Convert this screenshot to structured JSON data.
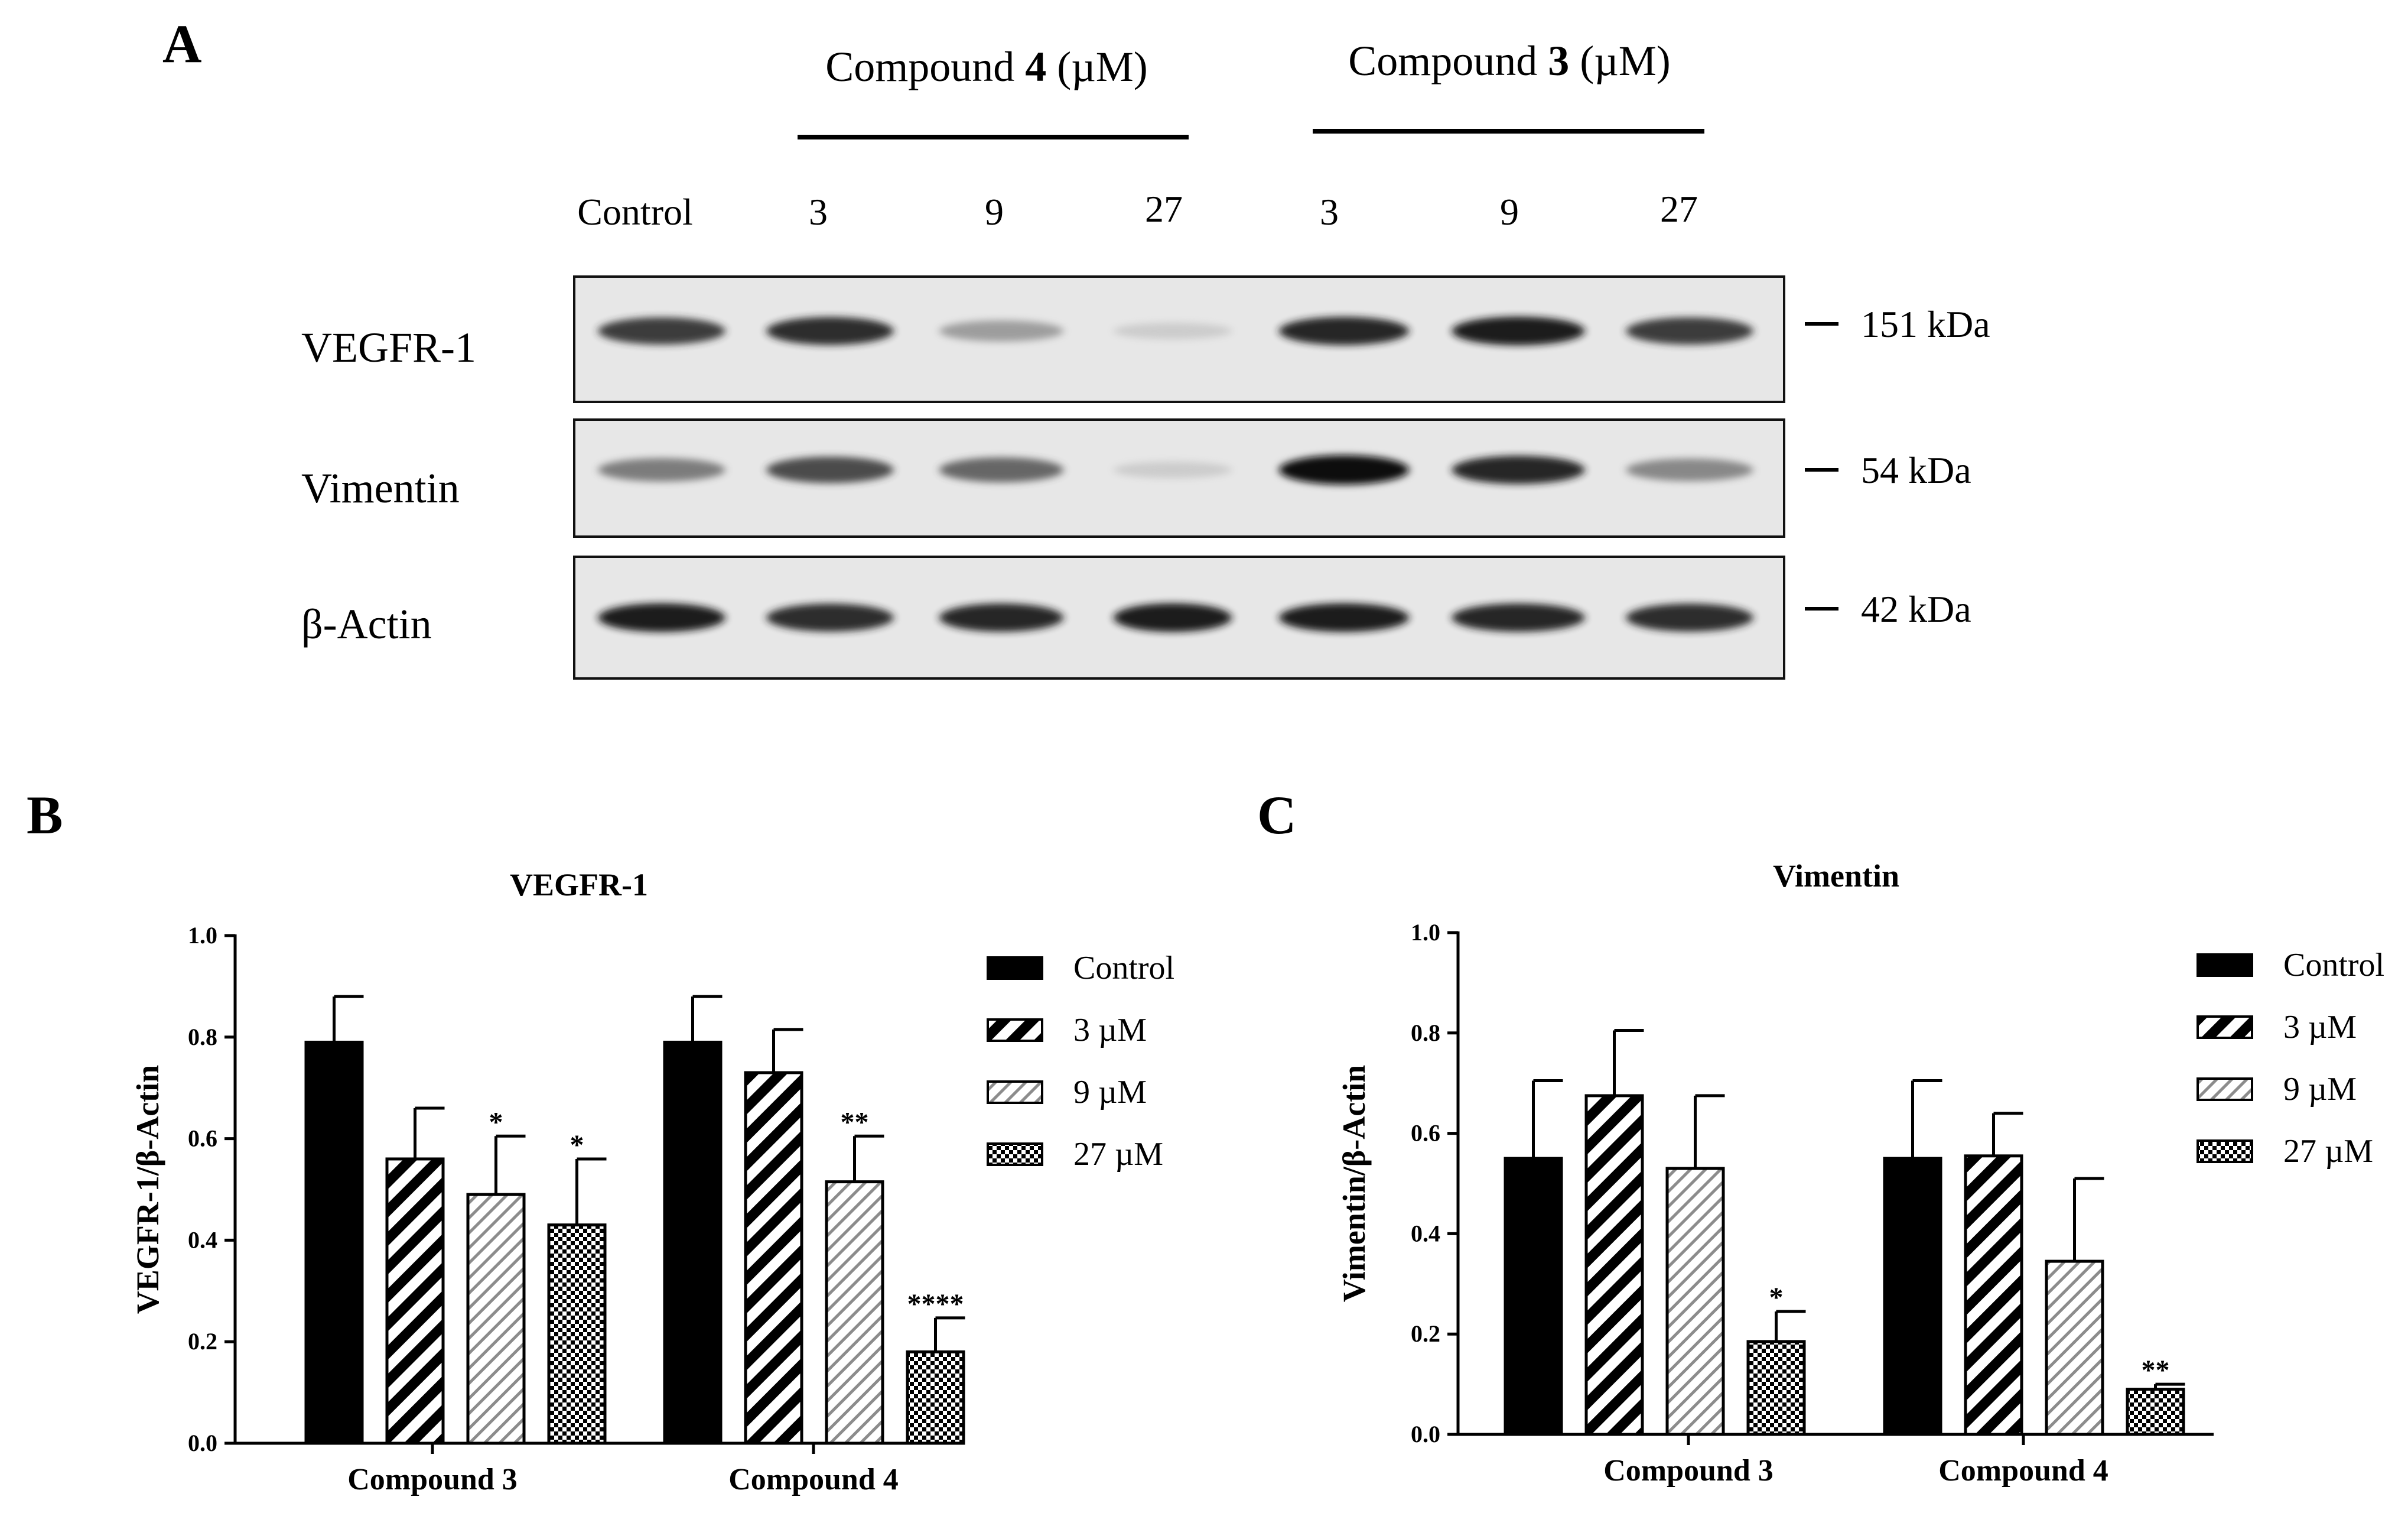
{
  "panel_a": {
    "letter": "A",
    "group4": {
      "prefix": "Compound ",
      "num": "4",
      "unit": " (µM)"
    },
    "group3": {
      "prefix": "Compound ",
      "num": "3",
      "unit": " (µM)"
    },
    "lane_labels": [
      "Control",
      "3",
      "9",
      "27",
      "3",
      "9",
      "27"
    ],
    "proteins": [
      "VEGFR-1",
      "Vimentin",
      "β-Actin"
    ],
    "markers": [
      "151 kDa",
      "54 kDa",
      "42 kDa"
    ],
    "band_intensity": [
      [
        0.85,
        0.9,
        0.45,
        0.15,
        0.92,
        0.95,
        0.85
      ],
      [
        0.6,
        0.8,
        0.7,
        0.15,
        1.0,
        0.92,
        0.55
      ],
      [
        0.95,
        0.9,
        0.92,
        0.95,
        0.95,
        0.92,
        0.9
      ]
    ]
  },
  "chart_data": [
    {
      "panel": "B",
      "type": "bar",
      "title": "VEGFR-1",
      "ylabel": "VEGFR-1/β-Actin",
      "categories": [
        "Compound 3",
        "Compound 4"
      ],
      "ylim": [
        0,
        1.0
      ],
      "yticks": [
        "0.0",
        "0.2",
        "0.4",
        "0.6",
        "0.8",
        "1.0"
      ],
      "legend_position": "right",
      "series": [
        {
          "name": "Control",
          "pattern": "solid",
          "values": [
            0.79,
            0.79
          ],
          "errors": [
            0.09,
            0.09
          ],
          "sig": [
            "",
            ""
          ]
        },
        {
          "name": "3 µM",
          "pattern": "hatch-bold",
          "values": [
            0.56,
            0.73
          ],
          "errors": [
            0.1,
            0.085
          ],
          "sig": [
            "",
            ""
          ]
        },
        {
          "name": "9 µM",
          "pattern": "hatch-light",
          "values": [
            0.49,
            0.515
          ],
          "errors": [
            0.115,
            0.09
          ],
          "sig": [
            "*",
            "**"
          ]
        },
        {
          "name": "27 µM",
          "pattern": "checker",
          "values": [
            0.43,
            0.18
          ],
          "errors": [
            0.13,
            0.067
          ],
          "sig": [
            "*",
            "****"
          ]
        }
      ]
    },
    {
      "panel": "C",
      "type": "bar",
      "title": "Vimentin",
      "ylabel": "Vimentin/β-Actin",
      "categories": [
        "Compound 3",
        "Compound 4"
      ],
      "ylim": [
        0,
        1.0
      ],
      "yticks": [
        "0.0",
        "0.2",
        "0.4",
        "0.6",
        "0.8",
        "1.0"
      ],
      "legend_position": "right",
      "series": [
        {
          "name": "Control",
          "pattern": "solid",
          "values": [
            0.55,
            0.55
          ],
          "errors": [
            0.155,
            0.155
          ],
          "sig": [
            "",
            ""
          ]
        },
        {
          "name": "3 µM",
          "pattern": "hatch-bold",
          "values": [
            0.675,
            0.555
          ],
          "errors": [
            0.13,
            0.085
          ],
          "sig": [
            "",
            ""
          ]
        },
        {
          "name": "9 µM",
          "pattern": "hatch-light",
          "values": [
            0.53,
            0.345
          ],
          "errors": [
            0.145,
            0.165
          ],
          "sig": [
            "",
            ""
          ]
        },
        {
          "name": "27 µM",
          "pattern": "checker",
          "values": [
            0.185,
            0.09
          ],
          "errors": [
            0.06,
            0.01
          ],
          "sig": [
            "*",
            "**"
          ]
        }
      ]
    }
  ]
}
